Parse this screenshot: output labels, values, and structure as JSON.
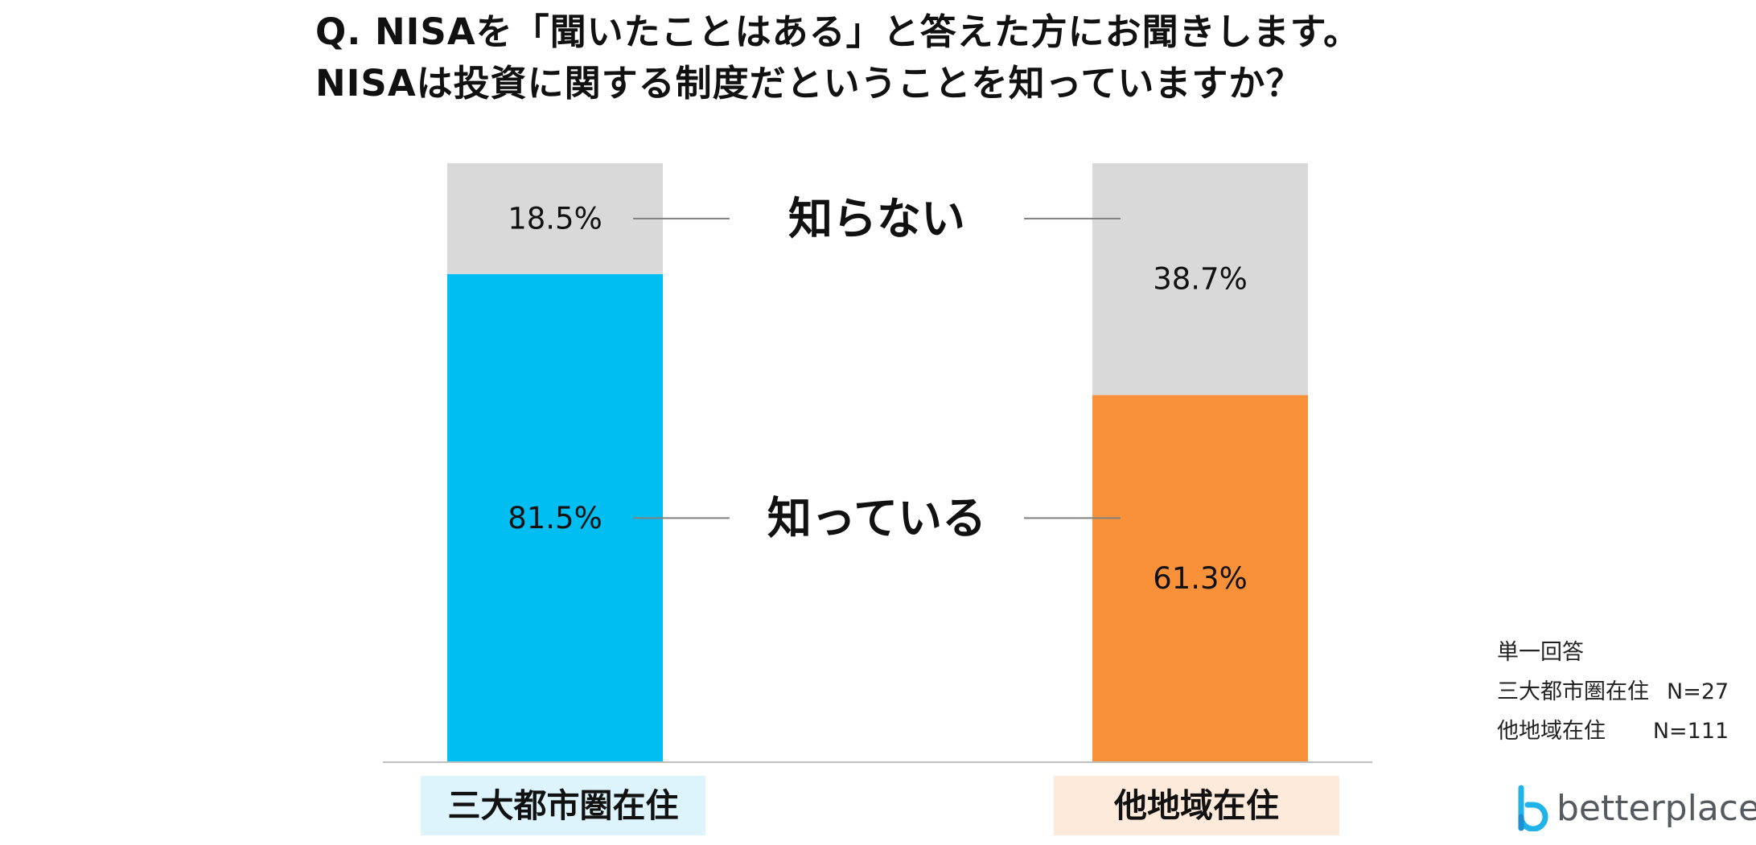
{
  "title": {
    "line1": "Q. NISAを「聞いたことはある」と答えた方にお聞きします。",
    "line2": "NISAは投資に関する制度だということを知っていますか？"
  },
  "chart_data": {
    "type": "bar",
    "stacked": true,
    "categories": [
      "三大都市圏在住",
      "他地域在住"
    ],
    "series": [
      {
        "name": "知っている",
        "values": [
          81.5,
          61.3
        ],
        "labels": [
          "81.5%",
          "61.3%"
        ]
      },
      {
        "name": "知らない",
        "values": [
          18.5,
          38.7
        ],
        "labels": [
          "18.5%",
          "38.7%"
        ]
      }
    ],
    "ylim": [
      0,
      100
    ],
    "grid": false,
    "legend": "center"
  },
  "colors": {
    "bar_1_known": "#00BEF2",
    "bar_2_known": "#F9913A",
    "unknown": "#D9D9D9",
    "category_1_bg": "#DDF4FC",
    "category_2_bg": "#FDEADB",
    "axis": "#BFBFBF",
    "connector": "#808080"
  },
  "note": {
    "line1": "単一回答",
    "row2_label": "三大都市圏在住",
    "row2_value": "N=27",
    "row3_label": "他地域在住",
    "row3_value": "N=111"
  },
  "logo": {
    "icon": "betterplace-b-icon",
    "text": "betterplace"
  }
}
